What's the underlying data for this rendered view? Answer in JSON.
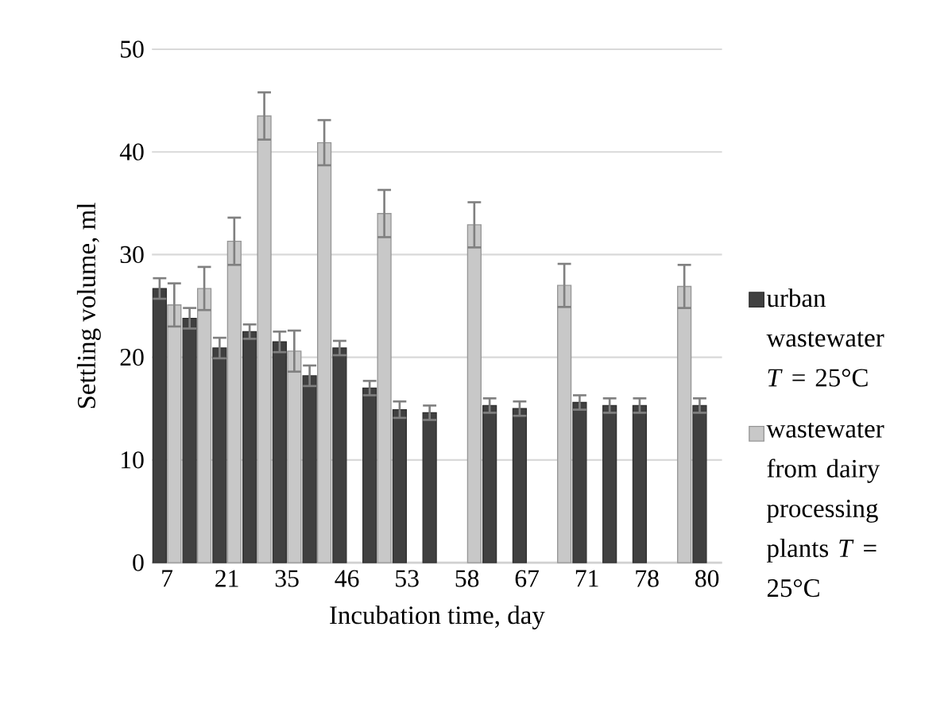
{
  "chart_data": {
    "type": "bar",
    "xlabel": "Incubation time, day",
    "ylabel": "Settling volume, ml",
    "categories": [
      "7",
      null,
      "21",
      null,
      "35",
      null,
      "46",
      null,
      "53",
      null,
      "58",
      null,
      "67",
      null,
      "71",
      null,
      "78",
      null,
      "80"
    ],
    "series": [
      {
        "name": "urban wastewater *T* = 25°C",
        "color": "#404040",
        "values": [
          26.7,
          23.8,
          20.9,
          22.5,
          21.5,
          18.2,
          20.9,
          17.0,
          14.9,
          14.6,
          null,
          15.3,
          15.0,
          null,
          15.6,
          15.3,
          15.3,
          null,
          15.3
        ],
        "errors": [
          1,
          1,
          1,
          0.7,
          1,
          1,
          0.7,
          0.7,
          0.8,
          0.7,
          null,
          0.7,
          0.7,
          null,
          0.7,
          0.7,
          0.7,
          null,
          0.7
        ]
      },
      {
        "name": "wastewater from dairy processing plants *T* = 25°C",
        "color": "#c8c8c8",
        "values": [
          25.1,
          26.7,
          31.3,
          43.5,
          20.6,
          40.9,
          null,
          34.0,
          null,
          null,
          32.9,
          null,
          null,
          27.0,
          null,
          null,
          null,
          26.9,
          null
        ],
        "errors": [
          2.1,
          2.1,
          2.3,
          2.3,
          2,
          2.2,
          null,
          2.3,
          null,
          null,
          2.2,
          null,
          null,
          2.1,
          null,
          null,
          null,
          2.1,
          null
        ]
      }
    ],
    "ylim": [
      0,
      50
    ],
    "yticks": [
      0,
      10,
      20,
      30,
      40,
      50
    ],
    "grid": "y",
    "legend": "right"
  }
}
